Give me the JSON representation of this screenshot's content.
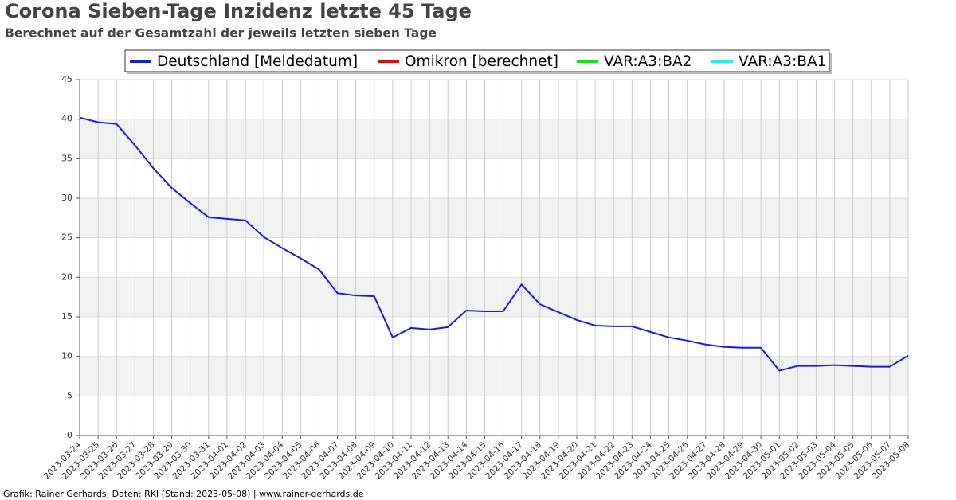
{
  "chart_data": {
    "type": "line",
    "title": "Corona Sieben-Tage Inzidenz letzte 45 Tage",
    "subtitle": "Berechnet auf der Gesamtzahl der jeweils letzten sieben Tage",
    "footer": "Grafik: Rainer Gerhards, Daten: RKI (Stand: 2023-05-08) | www.rainer-gerhards.de",
    "categories": [
      "2023-03-24",
      "2023-03-25",
      "2023-03-26",
      "2023-03-27",
      "2023-03-28",
      "2023-03-29",
      "2023-03-30",
      "2023-03-31",
      "2023-04-01",
      "2023-04-02",
      "2023-04-03",
      "2023-04-04",
      "2023-04-05",
      "2023-04-06",
      "2023-04-07",
      "2023-04-08",
      "2023-04-09",
      "2023-04-10",
      "2023-04-11",
      "2023-04-12",
      "2023-04-13",
      "2023-04-14",
      "2023-04-15",
      "2023-04-16",
      "2023-04-17",
      "2023-04-18",
      "2023-04-19",
      "2023-04-20",
      "2023-04-21",
      "2023-04-22",
      "2023-04-23",
      "2023-04-24",
      "2023-04-25",
      "2023-04-26",
      "2023-04-27",
      "2023-04-28",
      "2023-04-29",
      "2023-04-30",
      "2023-05-01",
      "2023-05-02",
      "2023-05-03",
      "2023-05-04",
      "2023-05-05",
      "2023-05-06",
      "2023-05-07",
      "2023-05-08"
    ],
    "series": [
      {
        "name": "Deutschland [Meldedatum]",
        "color": "#1a1ae6",
        "values": [
          40.2,
          39.6,
          39.4,
          36.7,
          33.8,
          31.3,
          29.4,
          27.6,
          27.4,
          27.2,
          25.1,
          23.7,
          22.4,
          21.0,
          18.0,
          17.7,
          17.6,
          12.4,
          13.6,
          13.4,
          13.7,
          15.8,
          15.7,
          15.7,
          19.1,
          16.6,
          15.6,
          14.6,
          13.9,
          13.8,
          13.8,
          13.1,
          12.4,
          12.0,
          11.5,
          11.2,
          11.1,
          11.1,
          8.2,
          8.8,
          8.8,
          8.9,
          8.8,
          8.7,
          8.7,
          10.1
        ]
      },
      {
        "name": "Omikron [berechnet]",
        "color": "#ff0000",
        "values": [
          null,
          null,
          null,
          null,
          null,
          null,
          null,
          null,
          null,
          null,
          null,
          null,
          null,
          null,
          null,
          null,
          null,
          null,
          null,
          null,
          null,
          null,
          null,
          null,
          null,
          null,
          null,
          null,
          null,
          null,
          null,
          null,
          null,
          null,
          null,
          null,
          null,
          null,
          null,
          null,
          null,
          null,
          null,
          null,
          null,
          null
        ]
      },
      {
        "name": "VAR:A3:BA2",
        "color": "#00ee00",
        "values": [
          null,
          null,
          null,
          null,
          null,
          null,
          null,
          null,
          null,
          null,
          null,
          null,
          null,
          null,
          null,
          null,
          null,
          null,
          null,
          null,
          null,
          null,
          null,
          null,
          null,
          null,
          null,
          null,
          null,
          null,
          null,
          null,
          null,
          null,
          null,
          null,
          null,
          null,
          null,
          null,
          null,
          null,
          null,
          null,
          null,
          null
        ]
      },
      {
        "name": "VAR:A3:BA1",
        "color": "#00ffff",
        "values": [
          null,
          null,
          null,
          null,
          null,
          null,
          null,
          null,
          null,
          null,
          null,
          null,
          null,
          null,
          null,
          null,
          null,
          null,
          null,
          null,
          null,
          null,
          null,
          null,
          null,
          null,
          null,
          null,
          null,
          null,
          null,
          null,
          null,
          null,
          null,
          null,
          null,
          null,
          null,
          null,
          null,
          null,
          null,
          null,
          null,
          null
        ]
      }
    ],
    "ylim": [
      0,
      45
    ],
    "yticks": [
      0,
      5,
      10,
      15,
      20,
      25,
      30,
      35,
      40,
      45
    ],
    "grid": true
  }
}
